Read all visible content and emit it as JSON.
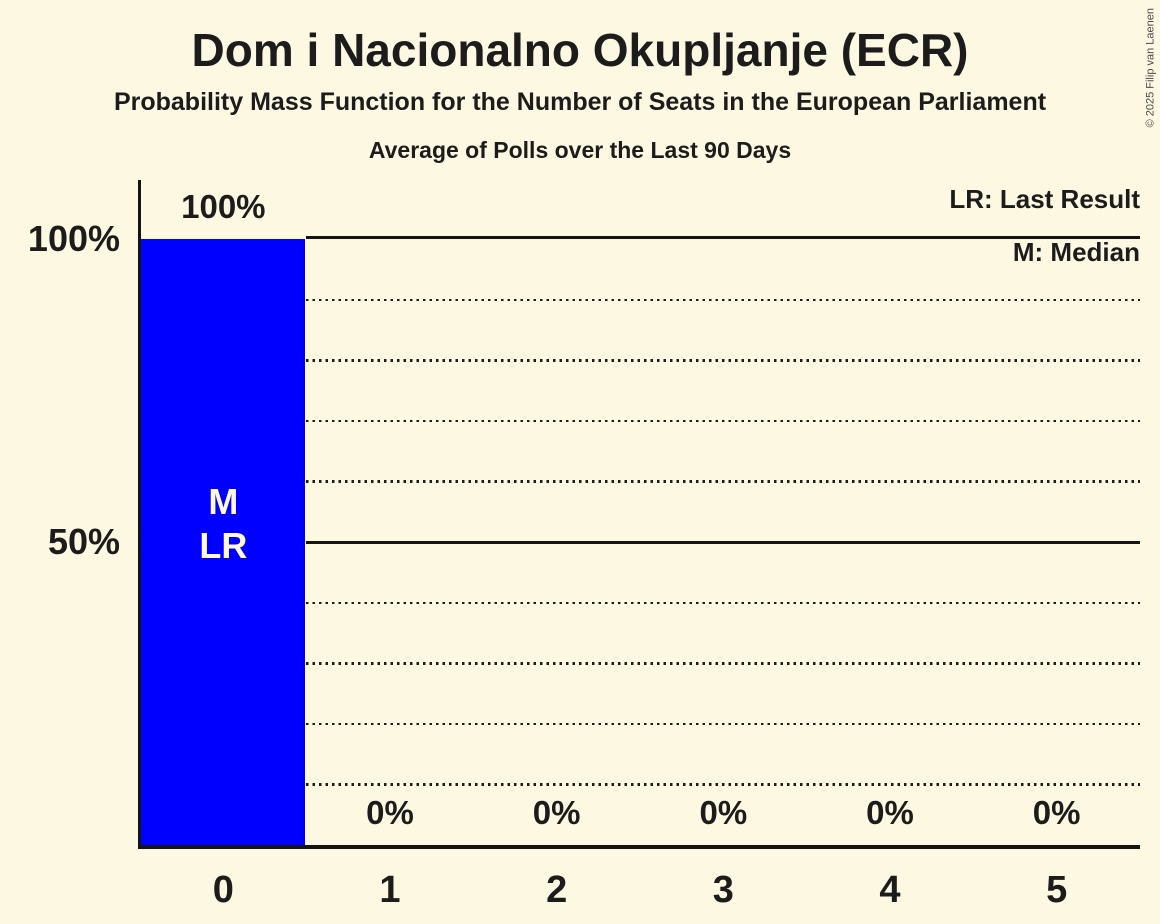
{
  "header": {
    "title": "Dom i Nacionalno Okupljanje (ECR)",
    "subtitle": "Probability Mass Function for the Number of Seats in the European Parliament",
    "period": "Average of Polls over the Last 90 Days"
  },
  "legend": {
    "last_result": "LR: Last Result",
    "median": "M: Median"
  },
  "copyright": "© 2025 Filip van Laenen",
  "colors": {
    "background": "#FDF8E2",
    "bar": "#0000FF",
    "text": "#1C1C1C",
    "line": "#141414",
    "bar_annotation_text": "#FDF8E2"
  },
  "chart_data": {
    "type": "bar",
    "title": "Dom i Nacionalno Okupljanje (ECR)",
    "categories": [
      "0",
      "1",
      "2",
      "3",
      "4",
      "5"
    ],
    "values": [
      100,
      0,
      0,
      0,
      0,
      0
    ],
    "value_labels": [
      "100%",
      "0%",
      "0%",
      "0%",
      "0%",
      "0%"
    ],
    "ylim": [
      0,
      100
    ],
    "y_tick_labels": [
      {
        "value": 100,
        "label": "100%"
      },
      {
        "value": 50,
        "label": "50%"
      }
    ],
    "gridlines_solid": [
      100,
      50
    ],
    "gridlines_dotted": [
      90,
      80,
      70,
      60,
      40,
      30,
      20,
      10
    ],
    "annotations": [
      {
        "category_index": 0,
        "lines": [
          "M",
          "LR"
        ]
      }
    ],
    "legend_position": "top-right",
    "grid": true
  }
}
